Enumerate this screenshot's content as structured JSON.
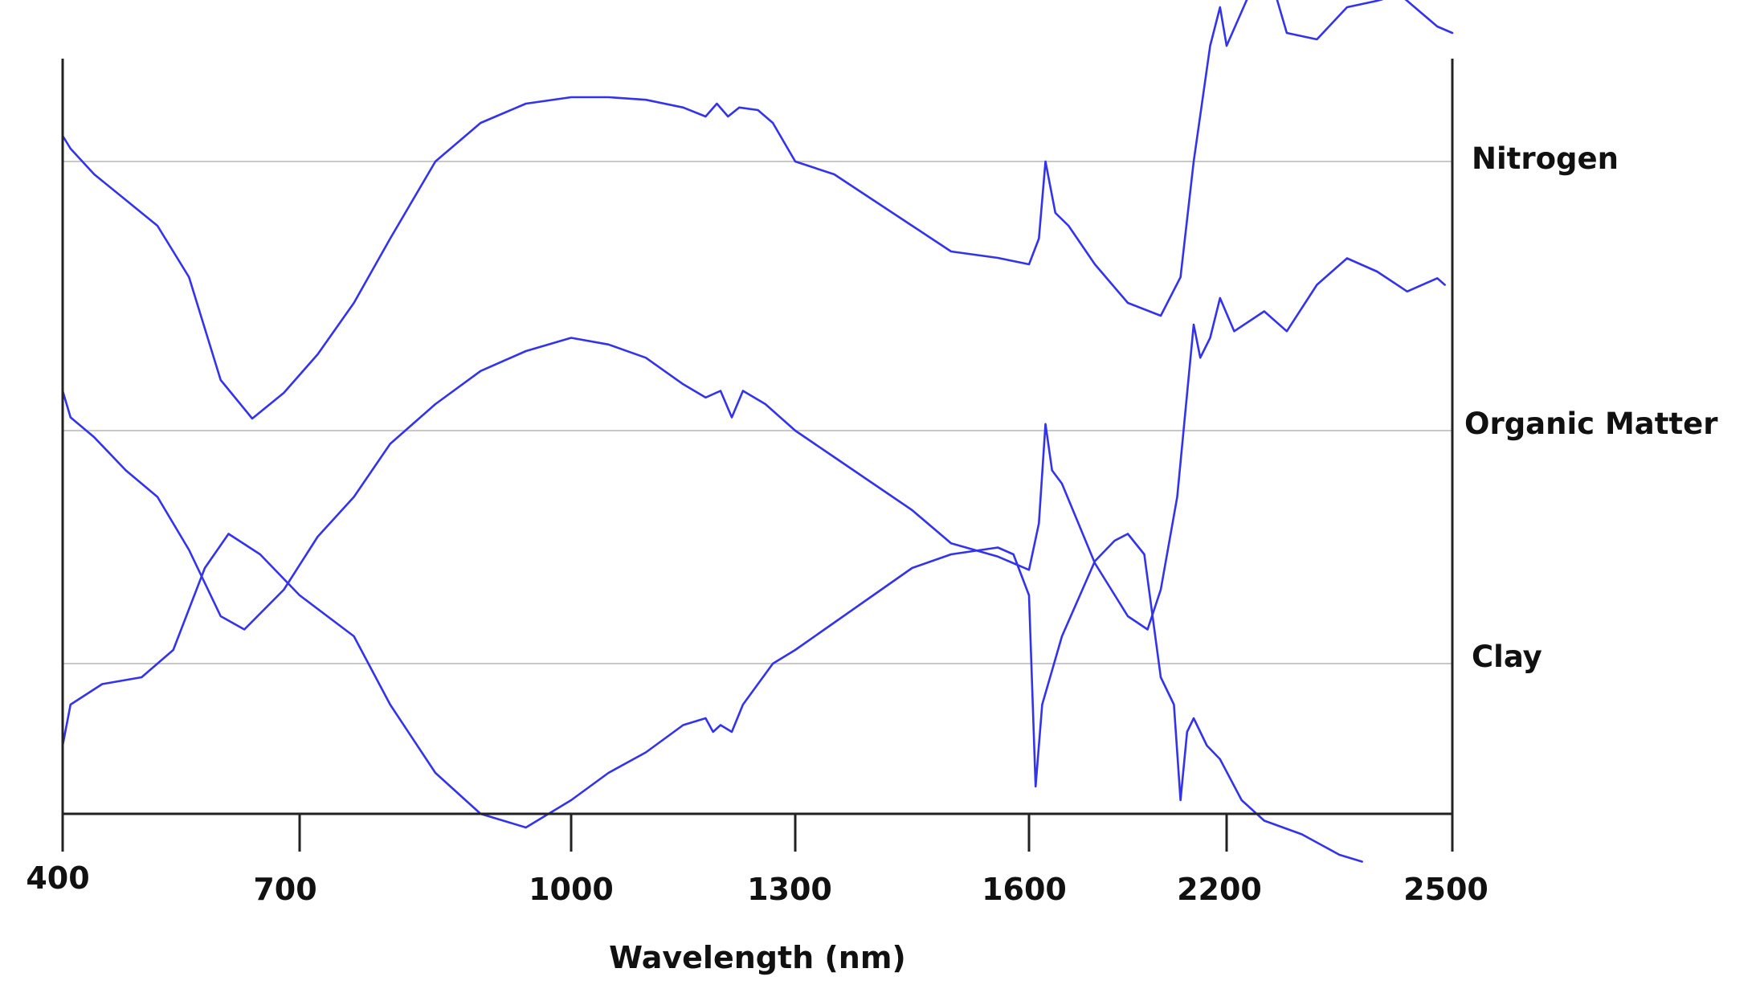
{
  "chart_data": {
    "type": "line",
    "title": "",
    "xlabel": "Wavelength (nm)",
    "ylabel": "",
    "x_ticks": [
      "400",
      "700",
      "1000",
      "1300",
      "1600",
      "2200",
      "2500"
    ],
    "x_scale": "piecewise (1600–2200 segment compressed)",
    "grid": false,
    "legend": "none; series names printed at right edge of each trace",
    "colors": {
      "series": "#3333ee",
      "baseline": "#c8c8c8",
      "axis": "#222222"
    },
    "series": [
      {
        "name": "Nitrogen",
        "points": [
          [
            400,
            0.2
          ],
          [
            410,
            0.1
          ],
          [
            440,
            -0.1
          ],
          [
            480,
            -0.3
          ],
          [
            520,
            -0.5
          ],
          [
            560,
            -0.9
          ],
          [
            600,
            -1.7
          ],
          [
            640,
            -2.0
          ],
          [
            680,
            -1.8
          ],
          [
            720,
            -1.5
          ],
          [
            760,
            -1.1
          ],
          [
            800,
            -0.6
          ],
          [
            850,
            0.0
          ],
          [
            900,
            0.3
          ],
          [
            950,
            0.45
          ],
          [
            1000,
            0.5
          ],
          [
            1050,
            0.5
          ],
          [
            1100,
            0.48
          ],
          [
            1150,
            0.42
          ],
          [
            1180,
            0.35
          ],
          [
            1195,
            0.45
          ],
          [
            1210,
            0.35
          ],
          [
            1225,
            0.42
          ],
          [
            1250,
            0.4
          ],
          [
            1270,
            0.3
          ],
          [
            1300,
            0.0
          ],
          [
            1350,
            -0.1
          ],
          [
            1400,
            -0.3
          ],
          [
            1450,
            -0.5
          ],
          [
            1500,
            -0.7
          ],
          [
            1560,
            -0.75
          ],
          [
            1600,
            -0.8
          ],
          [
            1630,
            -0.6
          ],
          [
            1650,
            0.0
          ],
          [
            1680,
            -0.4
          ],
          [
            1720,
            -0.5
          ],
          [
            1800,
            -0.8
          ],
          [
            1900,
            -1.1
          ],
          [
            2000,
            -1.2
          ],
          [
            2060,
            -0.9
          ],
          [
            2100,
            0.0
          ],
          [
            2150,
            0.9
          ],
          [
            2180,
            1.2
          ],
          [
            2200,
            0.9
          ],
          [
            2230,
            1.3
          ],
          [
            2260,
            1.4
          ],
          [
            2280,
            1.0
          ],
          [
            2320,
            0.95
          ],
          [
            2360,
            1.2
          ],
          [
            2400,
            1.25
          ],
          [
            2430,
            1.3
          ],
          [
            2460,
            1.15
          ],
          [
            2480,
            1.05
          ],
          [
            2500,
            1.0
          ]
        ]
      },
      {
        "name": "Organic Matter",
        "points": [
          [
            400,
            0.3
          ],
          [
            410,
            0.1
          ],
          [
            440,
            -0.05
          ],
          [
            480,
            -0.3
          ],
          [
            520,
            -0.5
          ],
          [
            560,
            -0.9
          ],
          [
            600,
            -1.4
          ],
          [
            630,
            -1.5
          ],
          [
            680,
            -1.2
          ],
          [
            720,
            -0.8
          ],
          [
            760,
            -0.5
          ],
          [
            800,
            -0.1
          ],
          [
            850,
            0.2
          ],
          [
            900,
            0.45
          ],
          [
            950,
            0.6
          ],
          [
            1000,
            0.7
          ],
          [
            1050,
            0.65
          ],
          [
            1100,
            0.55
          ],
          [
            1150,
            0.35
          ],
          [
            1180,
            0.25
          ],
          [
            1200,
            0.3
          ],
          [
            1215,
            0.1
          ],
          [
            1230,
            0.3
          ],
          [
            1260,
            0.2
          ],
          [
            1300,
            0.0
          ],
          [
            1350,
            -0.2
          ],
          [
            1400,
            -0.4
          ],
          [
            1450,
            -0.6
          ],
          [
            1500,
            -0.85
          ],
          [
            1560,
            -0.95
          ],
          [
            1600,
            -1.05
          ],
          [
            1630,
            -0.7
          ],
          [
            1650,
            0.05
          ],
          [
            1670,
            -0.3
          ],
          [
            1700,
            -0.4
          ],
          [
            1800,
            -1.0
          ],
          [
            1900,
            -1.4
          ],
          [
            1960,
            -1.5
          ],
          [
            2000,
            -1.2
          ],
          [
            2050,
            -0.5
          ],
          [
            2100,
            0.8
          ],
          [
            2120,
            0.55
          ],
          [
            2150,
            0.7
          ],
          [
            2180,
            1.0
          ],
          [
            2210,
            0.75
          ],
          [
            2250,
            0.9
          ],
          [
            2280,
            0.75
          ],
          [
            2320,
            1.1
          ],
          [
            2360,
            1.3
          ],
          [
            2400,
            1.2
          ],
          [
            2440,
            1.05
          ],
          [
            2480,
            1.15
          ],
          [
            2490,
            1.1
          ]
        ]
      },
      {
        "name": "Clay",
        "points": [
          [
            400,
            -0.6
          ],
          [
            410,
            -0.3
          ],
          [
            450,
            -0.15
          ],
          [
            500,
            -0.1
          ],
          [
            540,
            0.1
          ],
          [
            580,
            0.7
          ],
          [
            610,
            0.95
          ],
          [
            650,
            0.8
          ],
          [
            700,
            0.5
          ],
          [
            760,
            0.2
          ],
          [
            800,
            -0.3
          ],
          [
            850,
            -0.8
          ],
          [
            900,
            -1.1
          ],
          [
            950,
            -1.2
          ],
          [
            1000,
            -1.0
          ],
          [
            1050,
            -0.8
          ],
          [
            1100,
            -0.65
          ],
          [
            1150,
            -0.45
          ],
          [
            1180,
            -0.4
          ],
          [
            1190,
            -0.5
          ],
          [
            1200,
            -0.45
          ],
          [
            1215,
            -0.5
          ],
          [
            1230,
            -0.3
          ],
          [
            1270,
            0.0
          ],
          [
            1300,
            0.1
          ],
          [
            1350,
            0.3
          ],
          [
            1400,
            0.5
          ],
          [
            1450,
            0.7
          ],
          [
            1500,
            0.8
          ],
          [
            1560,
            0.85
          ],
          [
            1580,
            0.8
          ],
          [
            1600,
            0.5
          ],
          [
            1620,
            -0.9
          ],
          [
            1640,
            -0.3
          ],
          [
            1700,
            0.2
          ],
          [
            1800,
            0.75
          ],
          [
            1860,
            0.9
          ],
          [
            1900,
            0.95
          ],
          [
            1950,
            0.8
          ],
          [
            2000,
            -0.1
          ],
          [
            2040,
            -0.3
          ],
          [
            2060,
            -1.0
          ],
          [
            2080,
            -0.5
          ],
          [
            2100,
            -0.4
          ],
          [
            2140,
            -0.6
          ],
          [
            2180,
            -0.7
          ],
          [
            2220,
            -1.0
          ],
          [
            2250,
            -1.15
          ],
          [
            2300,
            -1.25
          ],
          [
            2350,
            -1.4
          ],
          [
            2380,
            -1.45
          ]
        ]
      }
    ]
  }
}
